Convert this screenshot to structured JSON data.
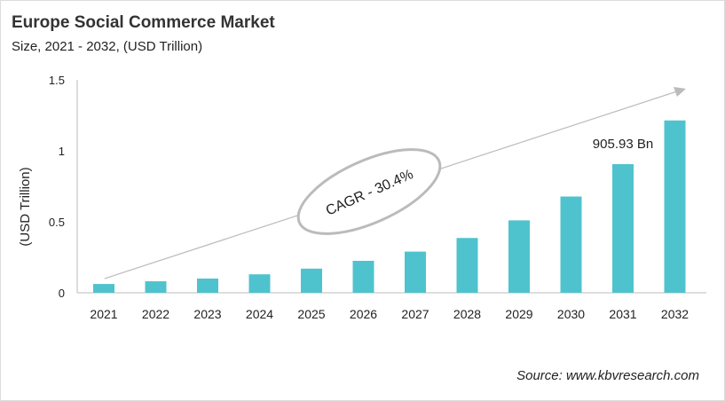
{
  "title": "Europe Social Commerce Market",
  "subtitle": "Size, 2021 - 2032, (USD Trillion)",
  "source": "Source: www.kbvresearch.com",
  "chart_data": {
    "type": "bar",
    "categories": [
      "2021",
      "2022",
      "2023",
      "2024",
      "2025",
      "2026",
      "2027",
      "2028",
      "2029",
      "2030",
      "2031",
      "2032"
    ],
    "values": [
      0.062,
      0.081,
      0.1,
      0.13,
      0.17,
      0.225,
      0.29,
      0.386,
      0.51,
      0.678,
      0.906,
      1.214
    ],
    "ylabel": "(USD Trillion)",
    "ylim": [
      0,
      1.5
    ],
    "yticks": [
      "0",
      "0.5",
      "1",
      "1.5"
    ],
    "grid": false,
    "bar_color": "#4fc3cd",
    "annotations": {
      "cagr": "CAGR - 30.4%",
      "value_label": "905.93 Bn"
    }
  }
}
